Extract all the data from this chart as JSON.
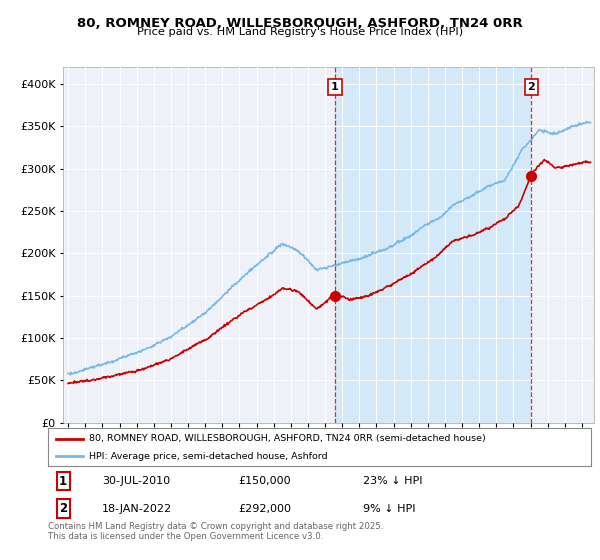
{
  "title": "80, ROMNEY ROAD, WILLESBOROUGH, ASHFORD, TN24 0RR",
  "subtitle": "Price paid vs. HM Land Registry's House Price Index (HPI)",
  "hpi_color": "#7ab8e8",
  "price_color": "#cc0000",
  "shade_color": "#d0e8f8",
  "plot_bg": "#eef2f8",
  "annotation1_date": "30-JUL-2010",
  "annotation1_price": 150000,
  "annotation1_label": "23% ↓ HPI",
  "annotation2_date": "18-JAN-2022",
  "annotation2_price": 292000,
  "annotation2_label": "9% ↓ HPI",
  "legend_line1": "80, ROMNEY ROAD, WILLESBOROUGH, ASHFORD, TN24 0RR (semi-detached house)",
  "legend_line2": "HPI: Average price, semi-detached house, Ashford",
  "footer": "Contains HM Land Registry data © Crown copyright and database right 2025.\nThis data is licensed under the Open Government Licence v3.0.",
  "ylim": [
    0,
    420000
  ],
  "yticks": [
    0,
    50000,
    100000,
    150000,
    200000,
    250000,
    300000,
    350000,
    400000
  ],
  "vline1_x": 2010.58,
  "vline2_x": 2022.05,
  "xmin": 1994.7,
  "xmax": 2025.7
}
